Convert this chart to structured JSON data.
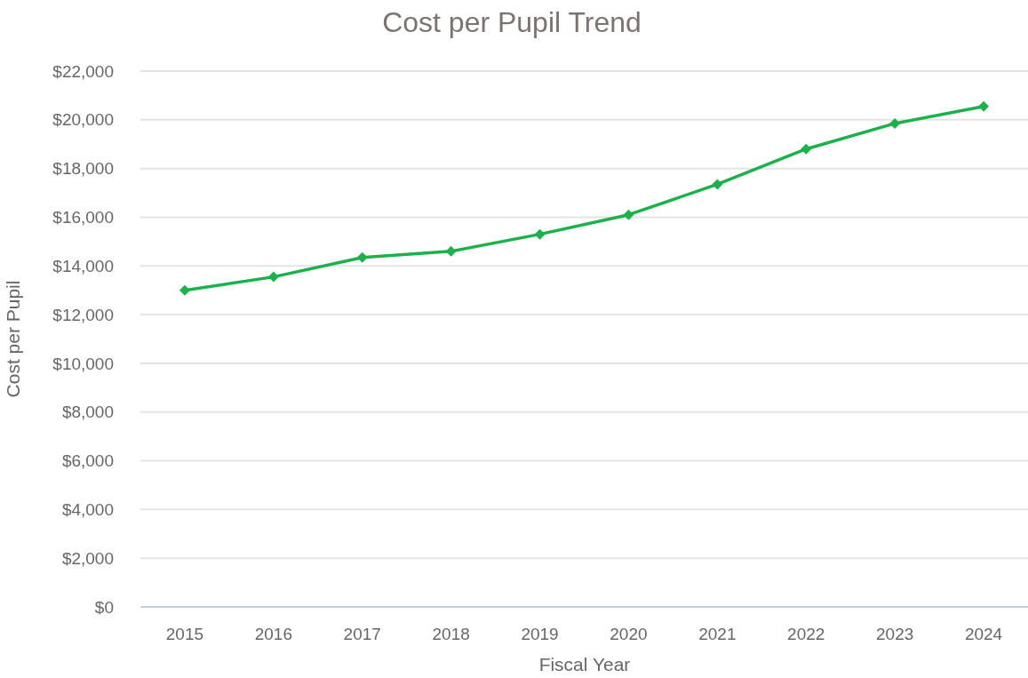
{
  "chart_data": {
    "type": "line",
    "title": "Cost per Pupil Trend",
    "xlabel": "Fiscal Year",
    "ylabel": "Cost per Pupil",
    "categories": [
      "2015",
      "2016",
      "2017",
      "2018",
      "2019",
      "2020",
      "2021",
      "2022",
      "2023",
      "2024"
    ],
    "series": [
      {
        "color": "#1db14b",
        "values": [
          13000,
          13550,
          14350,
          14600,
          15300,
          16100,
          17350,
          18800,
          19850,
          20550
        ]
      }
    ],
    "ylim": [
      0,
      22000
    ],
    "yticks": [
      {
        "value": 0,
        "label": "$0"
      },
      {
        "value": 2000,
        "label": "$2,000"
      },
      {
        "value": 4000,
        "label": "$4,000"
      },
      {
        "value": 6000,
        "label": "$6,000"
      },
      {
        "value": 8000,
        "label": "$8,000"
      },
      {
        "value": 10000,
        "label": "$10,000"
      },
      {
        "value": 12000,
        "label": "$12,000"
      },
      {
        "value": 14000,
        "label": "$14,000"
      },
      {
        "value": 16000,
        "label": "$16,000"
      },
      {
        "value": 18000,
        "label": "$18,000"
      },
      {
        "value": 20000,
        "label": "$20,000"
      },
      {
        "value": 22000,
        "label": "$22,000"
      }
    ],
    "grid": "y",
    "marker": "diamond",
    "line_style": "solid"
  }
}
